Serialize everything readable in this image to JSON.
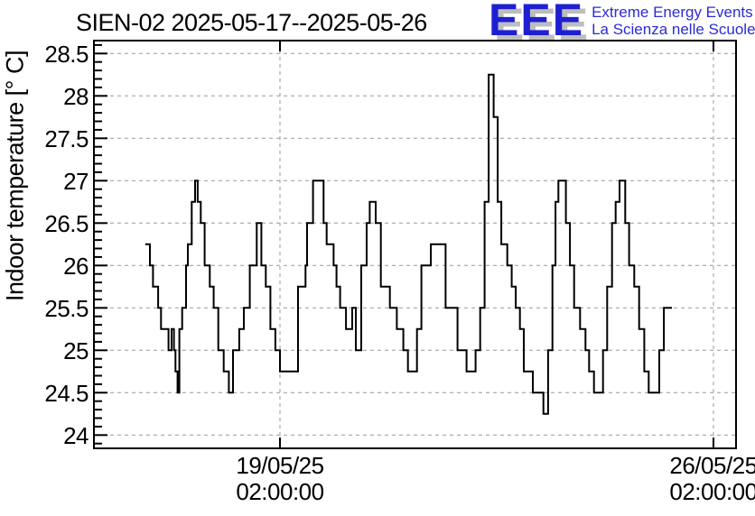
{
  "header": {
    "title": "SIEN-02 2025-05-17--2025-05-26"
  },
  "logo": {
    "letters": "EEE",
    "line1": "Extreme Energy Events",
    "line2": "La Scienza nelle Scuole",
    "color": "#1f1fd2",
    "shadow_color": "#bdbdbd",
    "text_color": "#2b2bd5"
  },
  "chart_data": {
    "type": "line",
    "step": true,
    "title": "SIEN-02 2025-05-17--2025-05-26",
    "series_name": "Indoor temperature",
    "xlabel": "",
    "ylabel": "Indoor temperature [° C]",
    "x_unit": "hours relative to 2025-05-19 02:00:00",
    "ylim": [
      23.84,
      28.65
    ],
    "xlim_hours": [
      -72.0,
      176.7
    ],
    "grid": true,
    "grid_color": "#999999",
    "line_color": "#000000",
    "frame_color": "#000000",
    "legend_position": "none",
    "y_major_ticks": [
      24,
      24.5,
      25,
      25.5,
      26,
      26.5,
      27,
      27.5,
      28,
      28.5
    ],
    "y_tick_labels": [
      "24",
      "24.5",
      "25",
      "25.5",
      "26",
      "26.5",
      "27",
      "27.5",
      "28",
      "28.5"
    ],
    "y_minor_step": 0.1,
    "x_ticks": [
      {
        "t": 0,
        "label_line1": "19/05/25",
        "label_line2": "02:00:00"
      },
      {
        "t": 168,
        "label_line1": "26/05/25",
        "label_line2": "02:00:00"
      }
    ],
    "t_end": 151.9,
    "points": [
      [
        -52.2,
        26.25
      ],
      [
        -50.4,
        26.0
      ],
      [
        -49.2,
        25.75
      ],
      [
        -47.2,
        25.5
      ],
      [
        -46.1,
        25.25
      ],
      [
        -43.2,
        25.0
      ],
      [
        -42.0,
        25.25
      ],
      [
        -41.1,
        25.0
      ],
      [
        -40.5,
        24.75
      ],
      [
        -39.7,
        24.5
      ],
      [
        -39.0,
        25.25
      ],
      [
        -37.9,
        25.5
      ],
      [
        -36.4,
        26.0
      ],
      [
        -35.7,
        26.25
      ],
      [
        -34.2,
        26.75
      ],
      [
        -32.9,
        27.0
      ],
      [
        -31.9,
        26.75
      ],
      [
        -30.7,
        26.5
      ],
      [
        -29.2,
        26.0
      ],
      [
        -27.2,
        25.75
      ],
      [
        -25.7,
        25.5
      ],
      [
        -23.9,
        25.0
      ],
      [
        -21.8,
        24.75
      ],
      [
        -19.8,
        24.5
      ],
      [
        -18.2,
        25.0
      ],
      [
        -15.8,
        25.25
      ],
      [
        -14.0,
        25.5
      ],
      [
        -11.7,
        26.0
      ],
      [
        -9.0,
        26.5
      ],
      [
        -7.2,
        26.0
      ],
      [
        -5.5,
        25.75
      ],
      [
        -3.7,
        25.25
      ],
      [
        -1.8,
        25.0
      ],
      [
        0.0,
        24.75
      ],
      [
        7.0,
        25.75
      ],
      [
        9.9,
        26.0
      ],
      [
        10.5,
        26.5
      ],
      [
        12.8,
        27.0
      ],
      [
        16.9,
        26.5
      ],
      [
        18.1,
        26.25
      ],
      [
        20.8,
        26.0
      ],
      [
        21.9,
        25.75
      ],
      [
        23.3,
        25.5
      ],
      [
        25.6,
        25.25
      ],
      [
        28.0,
        25.5
      ],
      [
        29.4,
        25.0
      ],
      [
        31.5,
        26.0
      ],
      [
        33.6,
        26.5
      ],
      [
        34.8,
        26.75
      ],
      [
        37.1,
        26.5
      ],
      [
        39.1,
        25.75
      ],
      [
        42.6,
        25.5
      ],
      [
        45.3,
        25.25
      ],
      [
        47.8,
        25.0
      ],
      [
        49.6,
        24.75
      ],
      [
        53.1,
        25.25
      ],
      [
        54.8,
        26.0
      ],
      [
        58.5,
        26.25
      ],
      [
        64.2,
        25.5
      ],
      [
        68.8,
        25.0
      ],
      [
        72.3,
        24.75
      ],
      [
        75.8,
        25.0
      ],
      [
        77.6,
        25.5
      ],
      [
        79.3,
        26.75
      ],
      [
        80.9,
        28.25
      ],
      [
        82.8,
        27.75
      ],
      [
        84.4,
        26.75
      ],
      [
        85.8,
        26.25
      ],
      [
        88.1,
        26.0
      ],
      [
        89.8,
        25.75
      ],
      [
        91.4,
        25.5
      ],
      [
        93.0,
        25.25
      ],
      [
        94.5,
        24.75
      ],
      [
        98.0,
        24.5
      ],
      [
        102.1,
        24.25
      ],
      [
        103.9,
        25.0
      ],
      [
        105.6,
        26.0
      ],
      [
        106.8,
        26.75
      ],
      [
        107.9,
        27.0
      ],
      [
        110.8,
        26.5
      ],
      [
        112.4,
        26.0
      ],
      [
        114.0,
        25.5
      ],
      [
        116.3,
        25.25
      ],
      [
        118.4,
        25.0
      ],
      [
        119.8,
        24.75
      ],
      [
        121.7,
        24.5
      ],
      [
        125.2,
        25.0
      ],
      [
        126.8,
        25.75
      ],
      [
        128.7,
        26.5
      ],
      [
        130.1,
        26.75
      ],
      [
        131.6,
        27.0
      ],
      [
        133.8,
        26.5
      ],
      [
        135.3,
        26.0
      ],
      [
        137.3,
        25.75
      ],
      [
        139.2,
        25.25
      ],
      [
        141.2,
        24.75
      ],
      [
        142.9,
        24.5
      ],
      [
        147.0,
        25.0
      ],
      [
        148.8,
        25.5
      ]
    ]
  }
}
